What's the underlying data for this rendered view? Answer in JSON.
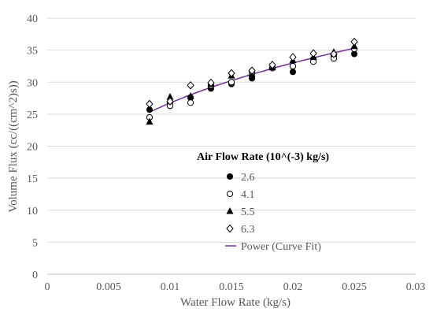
{
  "chart_data": {
    "type": "scatter",
    "xlabel": "Water Flow Rate (kg/s)",
    "ylabel": "Volume Flux (cc/((cm^2)s))",
    "xlim": [
      0,
      0.03
    ],
    "ylim": [
      0,
      40
    ],
    "xticks": [
      0,
      0.005,
      0.01,
      0.015,
      0.02,
      0.025,
      0.03
    ],
    "xtick_labels": [
      "0",
      "0.005",
      "0.01",
      "0.015",
      "0.02",
      "0.025",
      "0.03"
    ],
    "yticks": [
      0,
      5,
      10,
      15,
      20,
      25,
      30,
      35,
      40
    ],
    "ytick_labels": [
      "0",
      "5",
      "10",
      "15",
      "20",
      "25",
      "30",
      "35",
      "40"
    ],
    "grid": "horizontal",
    "legend": {
      "title": "Air Flow Rate (10^(-3) kg/s)",
      "placement": "center-right"
    },
    "x": [
      0.00833,
      0.01,
      0.01167,
      0.01333,
      0.015,
      0.01667,
      0.01833,
      0.02,
      0.02167,
      0.02333,
      0.025
    ],
    "series": [
      {
        "name": "2.6",
        "marker": "filled-circle",
        "color": "#000000",
        "values": [
          25.7,
          26.8,
          27.6,
          29.0,
          29.7,
          30.6,
          32.2,
          31.6,
          33.6,
          34.1,
          34.4
        ]
      },
      {
        "name": "4.1",
        "marker": "open-circle",
        "color": "#000000",
        "values": [
          24.5,
          26.3,
          26.8,
          29.5,
          30.0,
          31.4,
          32.2,
          32.5,
          33.2,
          33.7,
          35.2
        ]
      },
      {
        "name": "5.5",
        "marker": "filled-triangle",
        "color": "#000000",
        "values": [
          23.8,
          27.7,
          27.8,
          29.7,
          31.0,
          31.3,
          32.3,
          33.4,
          33.9,
          34.7,
          35.6
        ]
      },
      {
        "name": "6.3",
        "marker": "open-diamond",
        "color": "#000000",
        "values": [
          26.6,
          27.0,
          29.5,
          29.9,
          31.4,
          31.8,
          32.7,
          33.9,
          34.5,
          34.4,
          36.3
        ]
      }
    ],
    "fit": {
      "name": "Power (Curve Fit)",
      "color": "#7030a0",
      "x_range": [
        0.00833,
        0.025
      ],
      "y_start": 25.3,
      "y_end": 35.3
    }
  }
}
